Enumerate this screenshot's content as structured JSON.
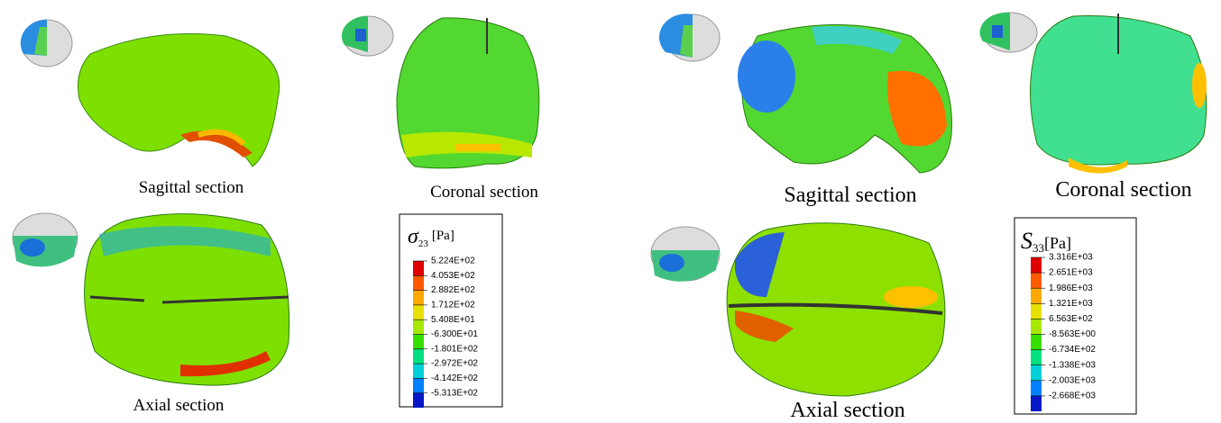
{
  "left": {
    "captions": [
      "Sagittal section",
      "Coronal section",
      "Axial section"
    ],
    "legend": {
      "symbol": "σ",
      "subscript": "23",
      "unit": "[Pa]",
      "labels": [
        "5.224E+02",
        "4.053E+02",
        "2.882E+02",
        "1.712E+02",
        "5.408E+01",
        "-6.300E+01",
        "-1.801E+02",
        "-2.972E+02",
        "-4.142E+02",
        "-5.313E+02"
      ],
      "colors": [
        "#e00000",
        "#ff5a00",
        "#ffa800",
        "#e8e000",
        "#a8e800",
        "#38e000",
        "#00e080",
        "#00d0d8",
        "#0080ff",
        "#0818c8"
      ]
    }
  },
  "right": {
    "captions": [
      "Sagittal section",
      "Coronal section",
      "Axial section"
    ],
    "legend": {
      "symbol": "S",
      "subscript": "33",
      "unit": "[Pa]",
      "labels": [
        "3.316E+03",
        "2.651E+03",
        "1.986E+03",
        "1.321E+03",
        "6.563E+02",
        "-8.563E+00",
        "-6.734E+02",
        "-1.338E+03",
        "-2.003E+03",
        "-2.668E+03"
      ],
      "colors": [
        "#e00000",
        "#ff5a00",
        "#ffa800",
        "#e8e000",
        "#a8e800",
        "#38e000",
        "#00e080",
        "#00d0d8",
        "#0080ff",
        "#0818c8"
      ]
    }
  }
}
